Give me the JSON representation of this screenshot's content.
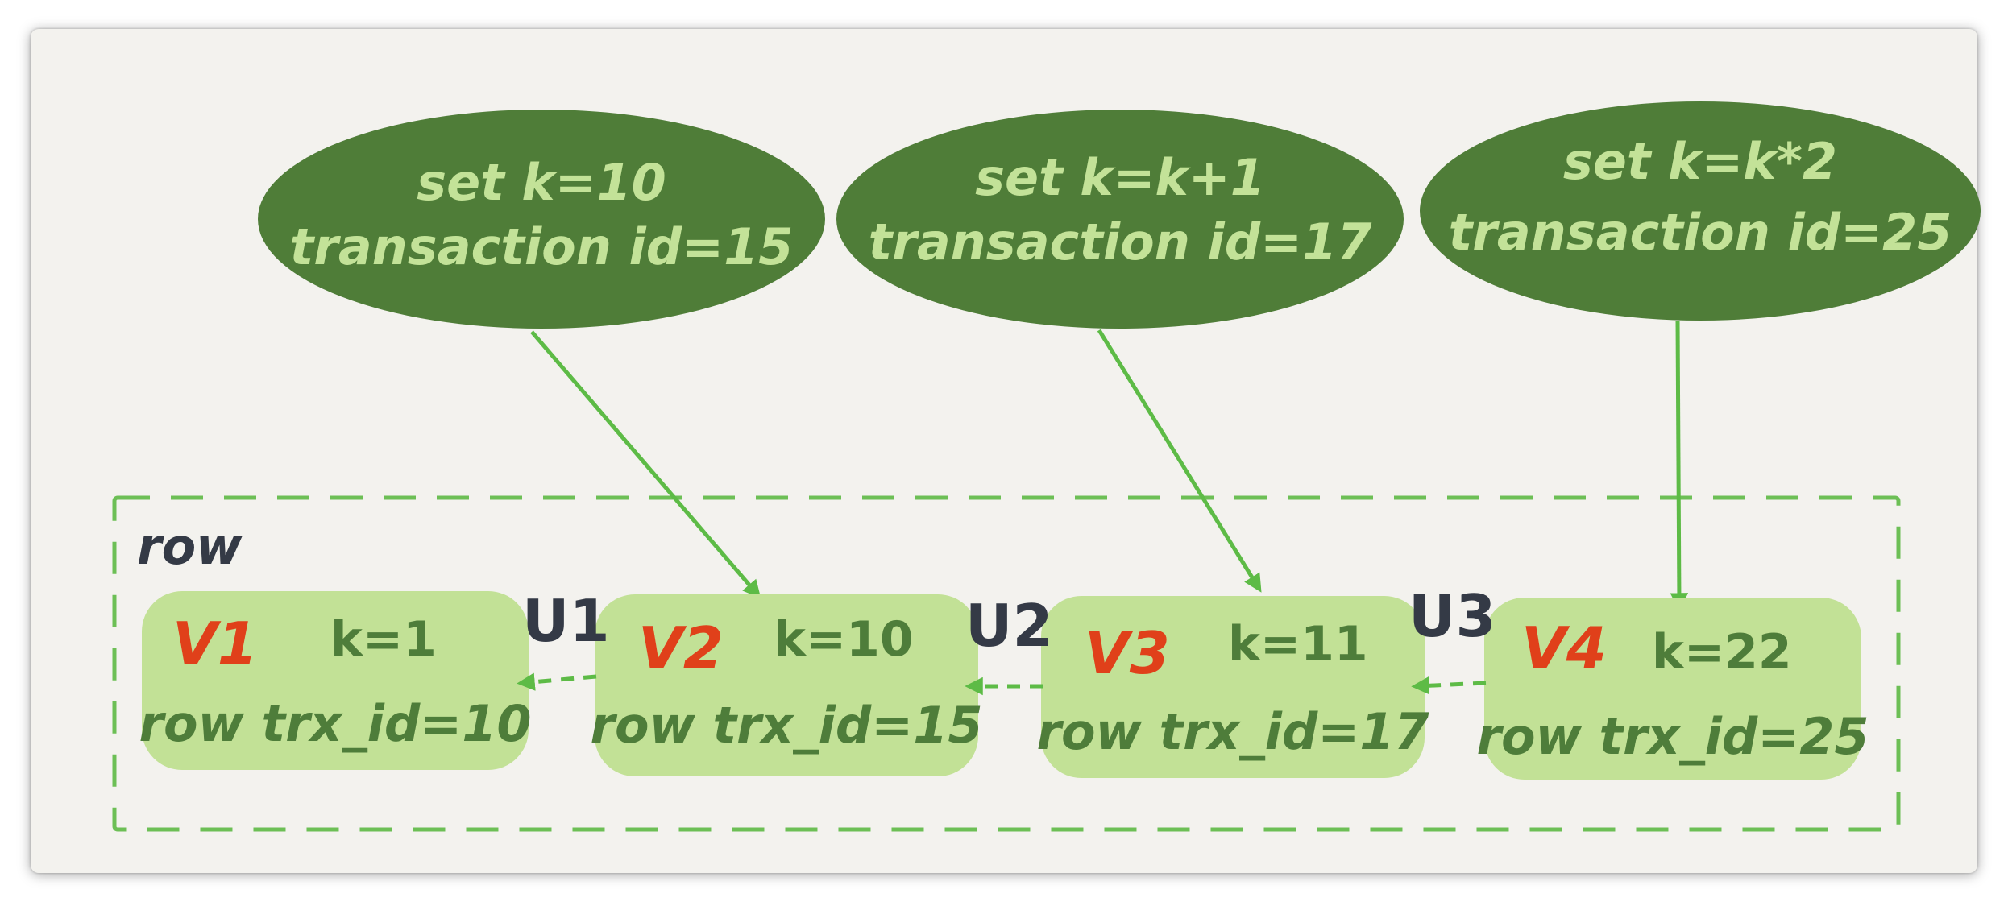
{
  "colors": {
    "ellipse_fill": "#4f7d38",
    "ellipse_text": "#c3e298",
    "box_fill": "#c2e196",
    "box_text": "#4e7d3a",
    "version_label": "#e0401a",
    "arrow": "#5dbb46",
    "dashed_border": "#6cbf55",
    "undo_label": "#343a46",
    "background": "#f3f2ee"
  },
  "updates": [
    {
      "statement": "set k=10",
      "transaction": "transaction id=15"
    },
    {
      "statement": "set k=k+1",
      "transaction": "transaction id=17"
    },
    {
      "statement": "set k=k*2",
      "transaction": "transaction id=25"
    }
  ],
  "row_label": "row",
  "versions": [
    {
      "version": "V1",
      "value": "k=1",
      "trx": "row trx_id=10"
    },
    {
      "version": "V2",
      "value": "k=10",
      "trx": "row trx_id=15"
    },
    {
      "version": "V3",
      "value": "k=11",
      "trx": "row trx_id=17"
    },
    {
      "version": "V4",
      "value": "k=22",
      "trx": "row trx_id=25"
    }
  ],
  "undo_logs": [
    "U1",
    "U2",
    "U3"
  ]
}
